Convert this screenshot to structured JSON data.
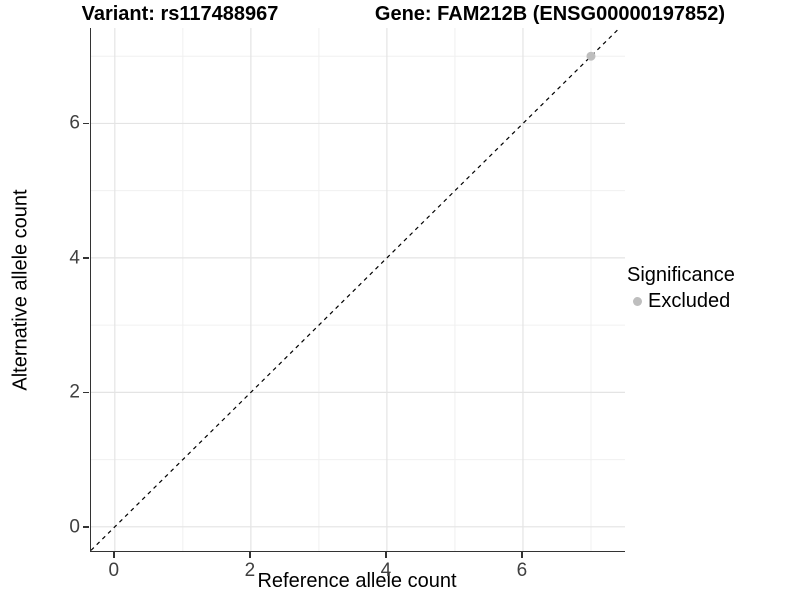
{
  "titles": {
    "left": "Variant: rs117488967",
    "right": "Gene: FAM212B (ENSG00000197852)"
  },
  "chart_data": {
    "type": "scatter",
    "xlabel": "Reference allele count",
    "ylabel": "Alternative allele count",
    "xlim": [
      -0.35,
      7.5
    ],
    "ylim": [
      -0.36,
      7.42
    ],
    "xticks": [
      0,
      2,
      4,
      6
    ],
    "yticks": [
      0,
      2,
      4,
      6
    ],
    "xticks_minor": [
      1,
      3,
      5,
      7
    ],
    "yticks_minor": [
      1,
      3,
      5,
      7
    ],
    "grid": true,
    "points": [
      {
        "x": 7,
        "y": 7,
        "series": "Excluded"
      }
    ],
    "reference_line": {
      "type": "identity",
      "style": "dashed",
      "color": "#000000"
    },
    "legend": {
      "title": "Significance",
      "position": "right",
      "items": [
        {
          "label": "Excluded",
          "color": "#bebebe"
        }
      ]
    },
    "colors": {
      "grid_major": "#e4e4e4",
      "grid_minor": "#f0f0f0",
      "axis": "#333333",
      "tick_text": "#404040",
      "point_excluded": "#bebebe"
    }
  }
}
